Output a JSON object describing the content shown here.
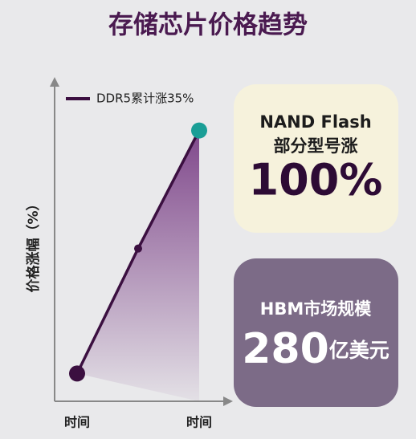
{
  "chart_data": {
    "type": "line",
    "title": "存储芯片价格趋势",
    "y_label": "价格涨幅（%）",
    "categories": [
      "时间",
      null,
      "时间"
    ],
    "series": [
      {
        "name": "DDR5累计涨35%",
        "color": "#3b0f40",
        "values": [
          0,
          18,
          35
        ]
      }
    ],
    "ylim": [
      -4,
      42
    ],
    "end_marker_color": "#1a9e96",
    "area_fill": "#7a3f86"
  },
  "cards": [
    {
      "label": [
        "NAND Flash",
        "部分型号涨"
      ],
      "value": "100%"
    },
    {
      "label": [
        "HBM市场规模"
      ],
      "value": "280",
      "unit": "亿美元"
    }
  ]
}
